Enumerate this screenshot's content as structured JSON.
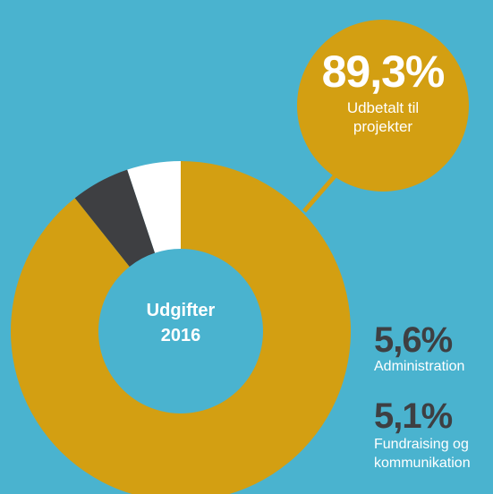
{
  "chart_data": {
    "type": "pie",
    "donut": true,
    "title": "Udgifter 2016",
    "categories": [
      "Udbetalt til projekter",
      "Administration",
      "Fundraising og kommunikation"
    ],
    "values": [
      89.3,
      5.6,
      5.1
    ],
    "value_labels": [
      "89,3%",
      "5,6%",
      "5,1%"
    ],
    "colors": [
      "#d39f12",
      "#3e3f42",
      "#ffffff"
    ]
  }
}
